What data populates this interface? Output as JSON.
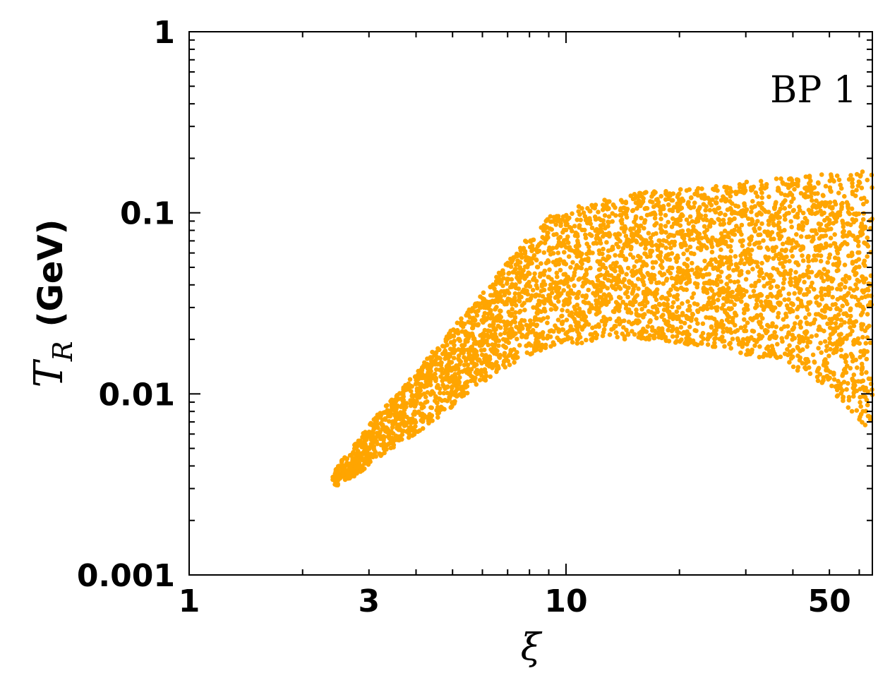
{
  "chart_data": {
    "type": "scatter",
    "title": "",
    "annotation": "BP 1",
    "xlabel": "ξ",
    "ylabel_symbol": "T",
    "ylabel_sub": "R",
    "ylabel_unit": "(GeV)",
    "xscale": "log",
    "yscale": "log",
    "xlim": [
      1,
      65
    ],
    "ylim": [
      0.001,
      1
    ],
    "xticks": [
      {
        "value": 1,
        "label": "1"
      },
      {
        "value": 3,
        "label": "3"
      },
      {
        "value": 10,
        "label": "10"
      },
      {
        "value": 50,
        "label": "50"
      }
    ],
    "yticks": [
      {
        "value": 0.001,
        "label": "0.001"
      },
      {
        "value": 0.01,
        "label": "0.01"
      },
      {
        "value": 0.1,
        "label": "0.1"
      },
      {
        "value": 1,
        "label": "1"
      }
    ],
    "grid": false,
    "marker_color": "#FFA500",
    "region": {
      "x": [
        2.4,
        2.8,
        3.2,
        3.7,
        4.3,
        5.0,
        5.8,
        6.7,
        7.8,
        9.0,
        11,
        13,
        16,
        20,
        25,
        30,
        36,
        43,
        50,
        57,
        65
      ],
      "y_lower": [
        0.003,
        0.0036,
        0.0045,
        0.0055,
        0.0066,
        0.0085,
        0.011,
        0.0135,
        0.016,
        0.018,
        0.019,
        0.02,
        0.02,
        0.019,
        0.018,
        0.0165,
        0.015,
        0.013,
        0.0105,
        0.008,
        0.006
      ],
      "y_upper": [
        0.0038,
        0.0055,
        0.008,
        0.011,
        0.016,
        0.023,
        0.033,
        0.048,
        0.07,
        0.095,
        0.11,
        0.12,
        0.13,
        0.135,
        0.14,
        0.148,
        0.155,
        0.16,
        0.165,
        0.168,
        0.17
      ]
    },
    "n_points": 4200
  }
}
